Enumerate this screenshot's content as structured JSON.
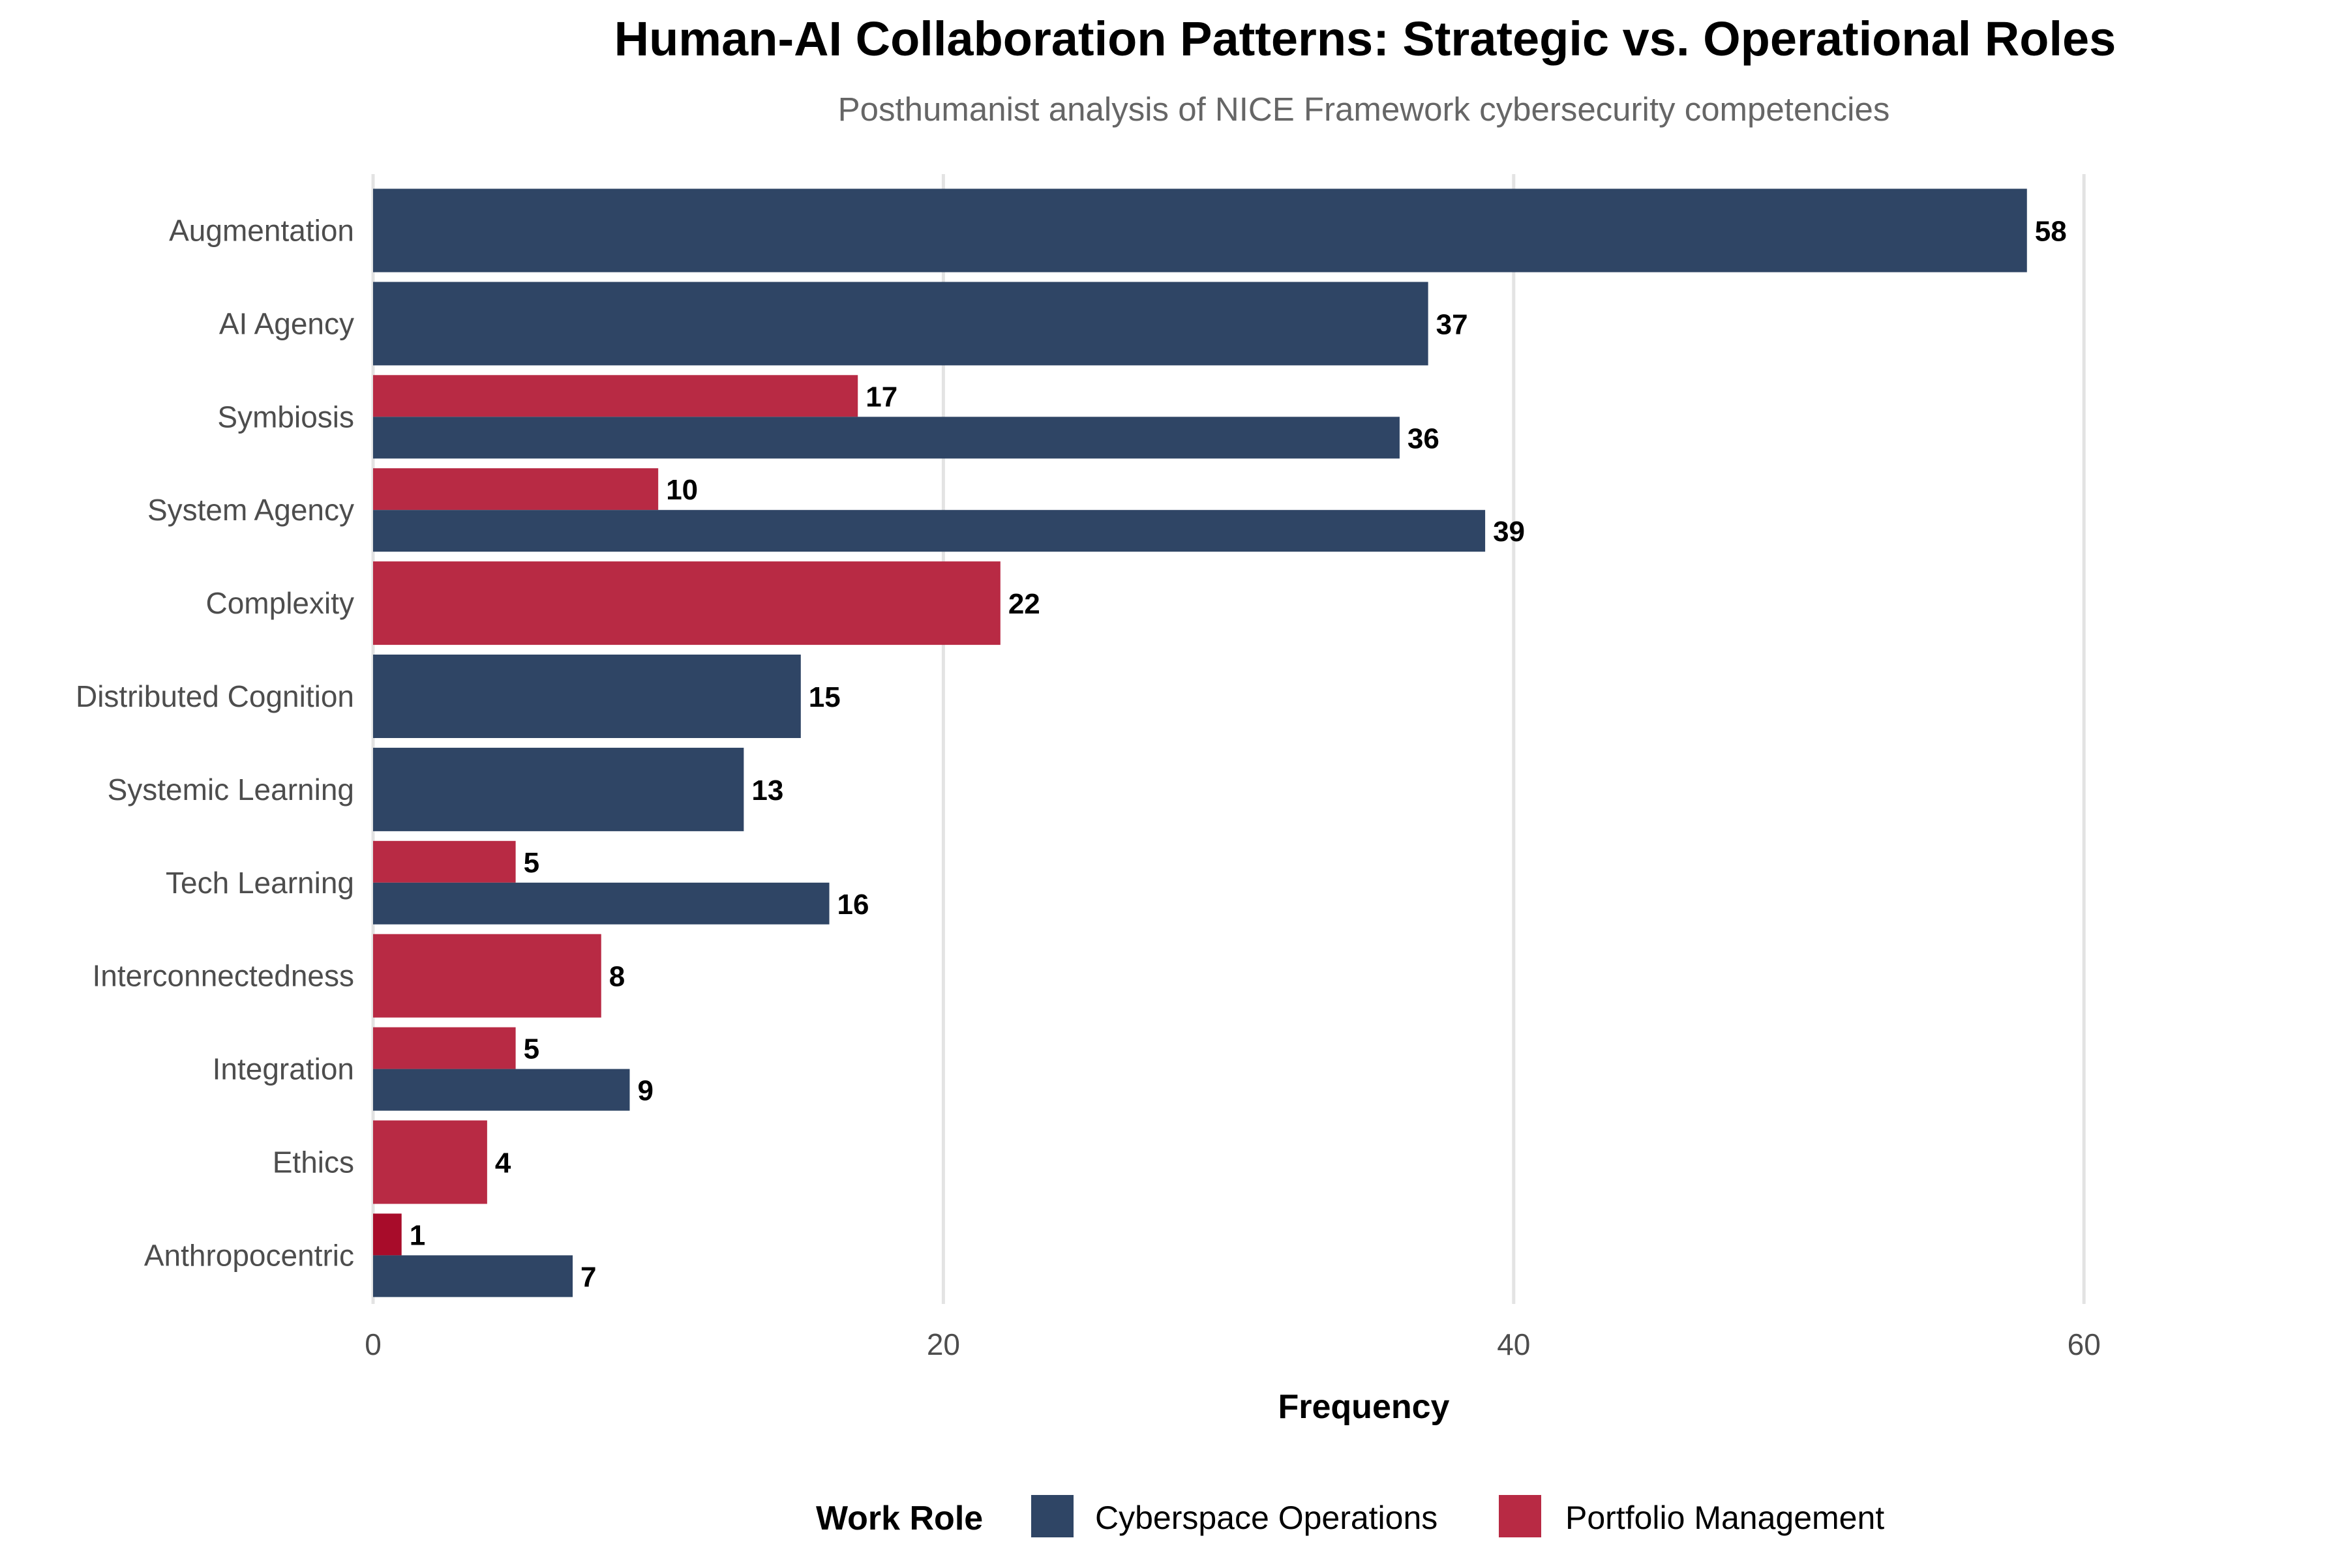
{
  "chart_data": {
    "type": "bar",
    "orientation": "horizontal",
    "title": "Human-AI Collaboration Patterns: Strategic vs. Operational Roles",
    "subtitle": "Posthumanist analysis of NICE Framework cybersecurity competencies",
    "xlabel": "Frequency",
    "ylabel": "",
    "xlim": [
      0,
      65
    ],
    "xticks": [
      0,
      20,
      40,
      60
    ],
    "grid": "vertical-major",
    "legend": {
      "title": "Work Role",
      "placement": "bottom",
      "entries": [
        "Cyberspace Operations",
        "Portfolio Management"
      ]
    },
    "colors": {
      "Cyberspace Operations": "#2f4565",
      "Portfolio Management": "#b82a44",
      "highlight": "#a80c2a"
    },
    "categories": [
      "Augmentation",
      "AI Agency",
      "Symbiosis",
      "System Agency",
      "Complexity",
      "Distributed Cognition",
      "Systemic Learning",
      "Tech Learning",
      "Interconnectedness",
      "Integration",
      "Ethics",
      "Anthropocentric"
    ],
    "series": [
      {
        "name": "Cyberspace Operations",
        "values": [
          58,
          37,
          36,
          39,
          null,
          15,
          13,
          16,
          null,
          9,
          null,
          7
        ]
      },
      {
        "name": "Portfolio Management",
        "values": [
          null,
          null,
          17,
          10,
          22,
          null,
          null,
          5,
          8,
          5,
          4,
          1
        ]
      }
    ]
  }
}
